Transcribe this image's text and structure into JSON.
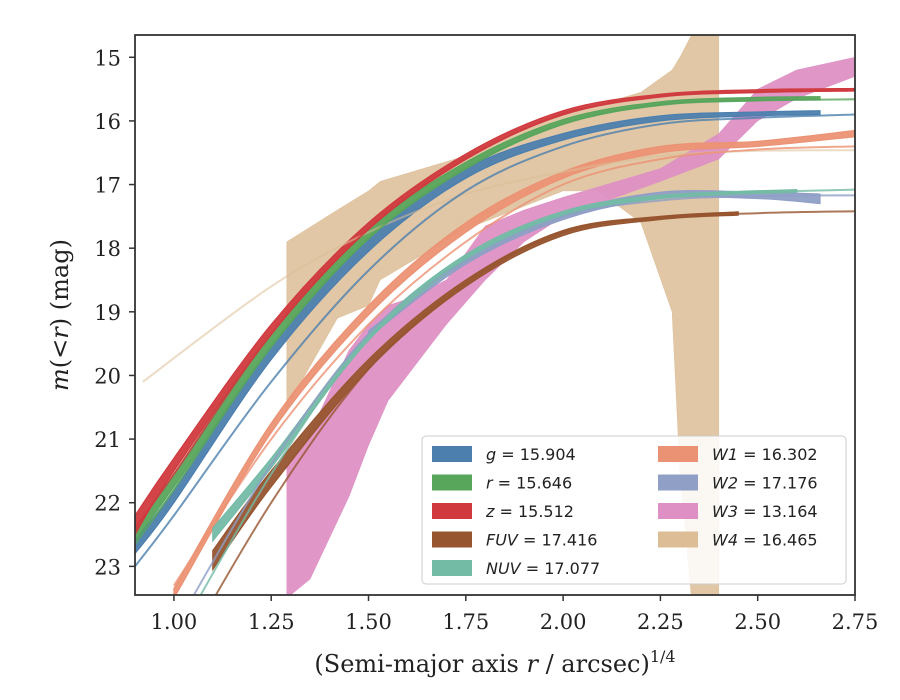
{
  "chart_data": {
    "type": "line",
    "title": "",
    "xlabel": "(Semi-major axis r / arcsec)^1/4",
    "xlabel_parts": {
      "main": "(Semi-major axis ",
      "var": "r",
      "rest": " / arcsec)",
      "sup": "1/4"
    },
    "ylabel": "m(< r) (mag)",
    "ylabel_parts": {
      "m": "m",
      "open": "(<",
      "r": "r",
      "close": ") (mag)"
    },
    "xlim": [
      0.9,
      2.75
    ],
    "ylim": [
      23.45,
      14.65
    ],
    "y_inverted": true,
    "xticks": [
      "1.00",
      "1.25",
      "1.50",
      "1.75",
      "2.00",
      "2.25",
      "2.50",
      "2.75"
    ],
    "xtick_values": [
      1.0,
      1.25,
      1.5,
      1.75,
      2.0,
      2.25,
      2.5,
      2.75
    ],
    "yticks": [
      "15",
      "16",
      "17",
      "18",
      "19",
      "20",
      "21",
      "22",
      "23"
    ],
    "ytick_values": [
      15,
      16,
      17,
      18,
      19,
      20,
      21,
      22,
      23
    ],
    "grid": false,
    "legend_position": "lower-right",
    "legend": [
      {
        "var": "g",
        "value": "15.904",
        "color": "#4c7fae"
      },
      {
        "var": "r",
        "value": "15.646",
        "color": "#58a55c"
      },
      {
        "var": "z",
        "value": "15.512",
        "color": "#d03a3e"
      },
      {
        "var": "FUV",
        "value": "17.416",
        "color": "#97552f"
      },
      {
        "var": "NUV",
        "value": "17.077",
        "color": "#74bba6"
      },
      {
        "var": "W1",
        "value": "16.302",
        "color": "#ec9274"
      },
      {
        "var": "W2",
        "value": "17.176",
        "color": "#8f9fc6"
      },
      {
        "var": "W3",
        "value": "13.164",
        "color": "#de90c4"
      },
      {
        "var": "W4",
        "value": "16.465",
        "color": "#dcbd96"
      }
    ],
    "series": [
      {
        "name": "g",
        "color": "#4c7fae",
        "model": [
          [
            0.9,
            23.0
          ],
          [
            1.0,
            22.2
          ],
          [
            1.25,
            20.1
          ],
          [
            1.5,
            18.35
          ],
          [
            1.75,
            17.1
          ],
          [
            2.0,
            16.4
          ],
          [
            2.25,
            16.05
          ],
          [
            2.5,
            15.95
          ],
          [
            2.75,
            15.9
          ]
        ],
        "data_band": [
          [
            0.9,
            22.8,
            22.6
          ],
          [
            1.0,
            22.0,
            21.8
          ],
          [
            1.25,
            19.75,
            19.55
          ],
          [
            1.5,
            18.05,
            17.85
          ],
          [
            1.75,
            16.9,
            16.75
          ],
          [
            2.0,
            16.3,
            16.2
          ],
          [
            2.25,
            16.0,
            15.92
          ],
          [
            2.5,
            15.92,
            15.86
          ],
          [
            2.66,
            15.9,
            15.84
          ]
        ]
      },
      {
        "name": "r",
        "color": "#58a55c",
        "model": [
          [
            0.9,
            22.65
          ],
          [
            1.0,
            21.8
          ],
          [
            1.25,
            19.55
          ],
          [
            1.5,
            17.85
          ],
          [
            1.75,
            16.75
          ],
          [
            2.0,
            16.05
          ],
          [
            2.25,
            15.75
          ],
          [
            2.5,
            15.68
          ],
          [
            2.75,
            15.66
          ]
        ],
        "data_band": [
          [
            0.9,
            22.6,
            22.4
          ],
          [
            1.0,
            21.75,
            21.55
          ],
          [
            1.25,
            19.55,
            19.35
          ],
          [
            1.5,
            17.85,
            17.7
          ],
          [
            1.75,
            16.75,
            16.65
          ],
          [
            2.0,
            16.05,
            15.98
          ],
          [
            2.25,
            15.75,
            15.7
          ],
          [
            2.5,
            15.68,
            15.63
          ],
          [
            2.66,
            15.67,
            15.62
          ]
        ]
      },
      {
        "name": "z",
        "color": "#d03a3e",
        "model": [
          [
            0.9,
            22.4
          ],
          [
            1.0,
            21.55
          ],
          [
            1.25,
            19.35
          ],
          [
            1.5,
            17.7
          ],
          [
            1.75,
            16.6
          ],
          [
            2.0,
            15.9
          ],
          [
            2.25,
            15.62
          ],
          [
            2.5,
            15.55
          ],
          [
            2.75,
            15.52
          ]
        ],
        "data_band": [
          [
            0.9,
            22.5,
            22.2
          ],
          [
            1.0,
            21.5,
            21.3
          ],
          [
            1.25,
            19.35,
            19.2
          ],
          [
            1.5,
            17.7,
            17.6
          ],
          [
            1.75,
            16.6,
            16.52
          ],
          [
            2.0,
            15.9,
            15.84
          ],
          [
            2.25,
            15.62,
            15.58
          ],
          [
            2.5,
            15.55,
            15.51
          ],
          [
            2.75,
            15.53,
            15.49
          ]
        ]
      },
      {
        "name": "FUV",
        "color": "#97552f",
        "model": [
          [
            1.0,
            24.6
          ],
          [
            1.25,
            22.0
          ],
          [
            1.5,
            19.9
          ],
          [
            1.75,
            18.55
          ],
          [
            2.0,
            17.75
          ],
          [
            2.25,
            17.52
          ],
          [
            2.5,
            17.45
          ],
          [
            2.75,
            17.42
          ]
        ],
        "data_band": [
          [
            1.1,
            23.05,
            22.75
          ],
          [
            1.25,
            21.75,
            21.5
          ],
          [
            1.5,
            19.9,
            19.75
          ],
          [
            1.75,
            18.6,
            18.5
          ],
          [
            2.0,
            17.8,
            17.72
          ],
          [
            2.25,
            17.55,
            17.5
          ],
          [
            2.45,
            17.48,
            17.43
          ]
        ]
      },
      {
        "name": "NUV",
        "color": "#74bba6",
        "model": [
          [
            1.0,
            24.2
          ],
          [
            1.25,
            21.55
          ],
          [
            1.5,
            19.4
          ],
          [
            1.75,
            18.15
          ],
          [
            2.0,
            17.45
          ],
          [
            2.25,
            17.2
          ],
          [
            2.5,
            17.12
          ],
          [
            2.75,
            17.08
          ]
        ],
        "data_band": [
          [
            1.1,
            22.6,
            22.4
          ],
          [
            1.25,
            21.45,
            21.3
          ],
          [
            1.5,
            19.45,
            19.35
          ],
          [
            1.75,
            18.2,
            18.1
          ],
          [
            2.0,
            17.5,
            17.42
          ],
          [
            2.25,
            17.22,
            17.17
          ],
          [
            2.6,
            17.12,
            17.08
          ]
        ]
      },
      {
        "name": "W1",
        "color": "#ec9274",
        "model": [
          [
            1.0,
            23.3
          ],
          [
            1.25,
            21.0
          ],
          [
            1.5,
            19.2
          ],
          [
            1.75,
            17.9
          ],
          [
            2.0,
            17.0
          ],
          [
            2.25,
            16.6
          ],
          [
            2.5,
            16.45
          ],
          [
            2.75,
            16.4
          ]
        ],
        "data_band": [
          [
            1.0,
            23.5,
            23.35
          ],
          [
            1.25,
            20.9,
            20.75
          ],
          [
            1.5,
            19.05,
            18.9
          ],
          [
            1.75,
            17.75,
            17.6
          ],
          [
            2.0,
            16.9,
            16.8
          ],
          [
            2.25,
            16.5,
            16.4
          ],
          [
            2.5,
            16.4,
            16.32
          ],
          [
            2.75,
            16.25,
            16.15
          ]
        ]
      },
      {
        "name": "W2",
        "color": "#8f9fc6",
        "model": [
          [
            1.0,
            24.0
          ],
          [
            1.25,
            21.4
          ],
          [
            1.5,
            19.35
          ],
          [
            1.75,
            18.2
          ],
          [
            2.0,
            17.5
          ],
          [
            2.25,
            17.25
          ],
          [
            2.5,
            17.18
          ],
          [
            2.75,
            17.17
          ]
        ],
        "data_band": [
          [
            1.5,
            19.4,
            19.3
          ],
          [
            1.75,
            18.25,
            18.15
          ],
          [
            2.0,
            17.55,
            17.45
          ],
          [
            2.25,
            17.22,
            17.12
          ],
          [
            2.5,
            17.22,
            17.12
          ],
          [
            2.66,
            17.3,
            17.15
          ]
        ]
      },
      {
        "name": "W3",
        "color": "#de90c4",
        "data_band": [
          [
            1.29,
            23.5,
            21.4
          ],
          [
            1.35,
            23.2,
            20.9
          ],
          [
            1.45,
            21.9,
            19.6
          ],
          [
            1.5,
            21.1,
            19.2
          ],
          [
            1.55,
            20.4,
            18.9
          ],
          [
            1.6,
            20.0,
            18.8
          ],
          [
            1.7,
            19.2,
            18.5
          ],
          [
            1.8,
            18.5,
            17.65
          ],
          [
            1.9,
            17.9,
            17.4
          ],
          [
            2.0,
            17.5,
            17.2
          ],
          [
            2.25,
            16.95,
            16.75
          ],
          [
            2.4,
            16.6,
            16.2
          ],
          [
            2.5,
            16.0,
            15.5
          ],
          [
            2.6,
            15.65,
            15.2
          ],
          [
            2.75,
            15.3,
            15.0
          ]
        ]
      },
      {
        "name": "W4",
        "color": "#dcbd96",
        "model": [
          [
            0.92,
            20.1
          ],
          [
            1.25,
            18.6
          ],
          [
            1.5,
            17.75
          ],
          [
            1.75,
            17.15
          ],
          [
            2.0,
            16.8
          ],
          [
            2.25,
            16.55
          ],
          [
            2.5,
            16.47
          ],
          [
            2.75,
            16.46
          ]
        ],
        "data_band": [
          [
            1.29,
            20.5,
            17.9
          ],
          [
            1.42,
            19.1,
            17.4
          ],
          [
            1.5,
            18.9,
            17.1
          ],
          [
            1.53,
            18.5,
            16.95
          ],
          [
            1.75,
            17.7,
            16.55
          ],
          [
            2.0,
            17.1,
            15.85
          ],
          [
            2.09,
            17.1,
            15.75
          ],
          [
            2.2,
            17.6,
            15.55
          ],
          [
            2.28,
            19.0,
            15.2
          ],
          [
            2.3,
            21.5,
            15.0
          ],
          [
            2.33,
            23.5,
            14.65
          ],
          [
            2.4,
            23.5,
            14.65
          ]
        ]
      }
    ]
  }
}
